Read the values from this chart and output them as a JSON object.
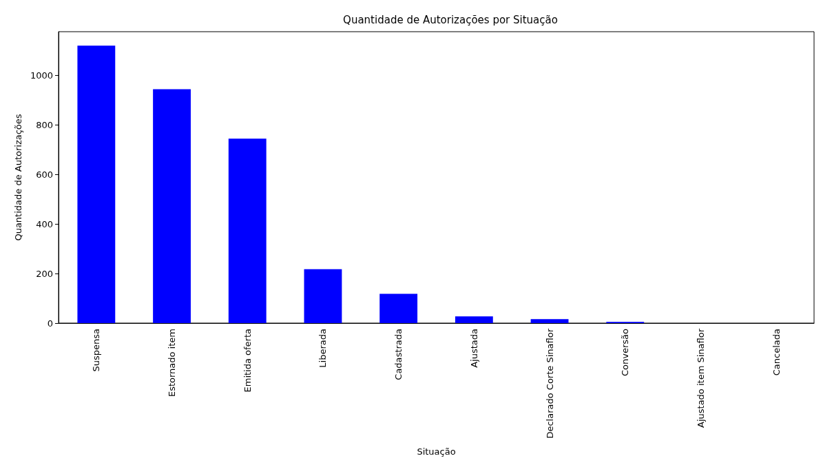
{
  "chart_data": {
    "type": "bar",
    "title": "Quantidade de Autorizações por Situação",
    "xlabel": "Situação",
    "ylabel": "Quantidade de Autorizações",
    "categories": [
      "Suspensa",
      "Estornado item",
      "Emitida oferta",
      "Liberada",
      "Cadastrada",
      "Ajustada",
      "Declarado Corte Sinaflor",
      "Conversão",
      "Ajustado item Sinaflor",
      "Cancelada"
    ],
    "values": [
      1121,
      945,
      745,
      218,
      118,
      27,
      16,
      5,
      0,
      0
    ],
    "color": "#0000ff",
    "ylim": [
      0,
      1177
    ],
    "yticks": [
      0,
      200,
      400,
      600,
      800,
      1000
    ],
    "grid": false
  }
}
